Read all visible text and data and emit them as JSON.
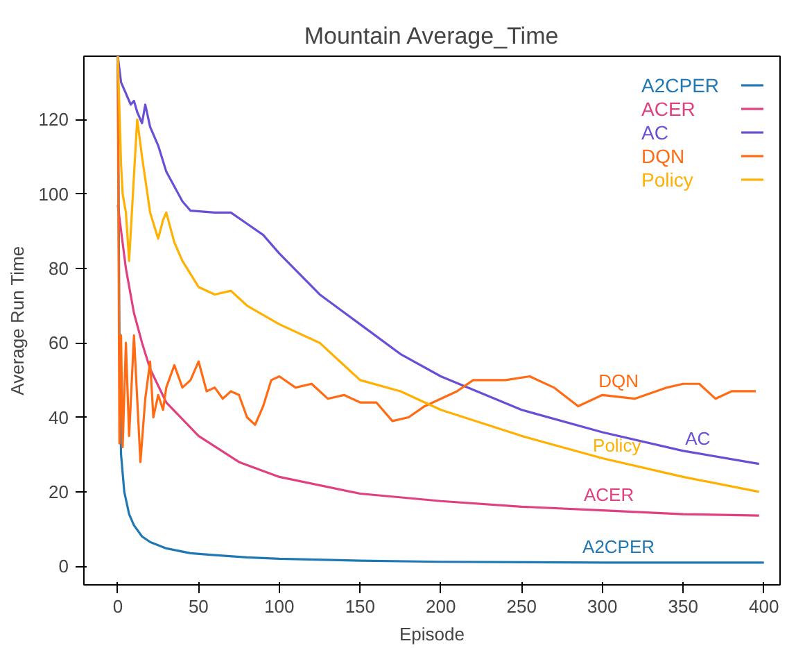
{
  "chart_data": {
    "type": "line",
    "title": "Mountain Average_Time",
    "xlabel": "Episode",
    "ylabel": "Average Run Time",
    "xlim": [
      -21,
      410
    ],
    "ylim": [
      -5,
      137
    ],
    "xticks": [
      0,
      50,
      100,
      150,
      200,
      250,
      300,
      350,
      400
    ],
    "yticks": [
      0,
      20,
      40,
      60,
      80,
      100,
      120
    ],
    "grid": false,
    "legend": "top right",
    "line_style": "solid",
    "series": [
      {
        "name": "A2CPER",
        "color": "#1f77b4",
        "x": [
          0,
          1,
          2,
          4,
          7,
          10,
          15,
          20,
          30,
          45,
          60,
          80,
          100,
          150,
          200,
          300,
          400
        ],
        "values": [
          137,
          60,
          30,
          20,
          14,
          11,
          8,
          6.5,
          4.8,
          3.5,
          3,
          2.4,
          2,
          1.5,
          1.2,
          1,
          1
        ]
      },
      {
        "name": "ACER",
        "color": "#e0407f",
        "x": [
          0,
          5,
          10,
          15,
          20,
          30,
          50,
          75,
          100,
          150,
          200,
          250,
          300,
          350,
          397
        ],
        "values": [
          97,
          80,
          68,
          60,
          53,
          44,
          35,
          28,
          24,
          19.5,
          17.5,
          16,
          15,
          14,
          13.6
        ]
      },
      {
        "name": "AC",
        "color": "#6a4fd6",
        "x": [
          0,
          2,
          5,
          8,
          10,
          12,
          15,
          17,
          20,
          25,
          30,
          40,
          45,
          60,
          70,
          80,
          90,
          100,
          125,
          150,
          175,
          200,
          250,
          300,
          350,
          397
        ],
        "values": [
          137,
          130,
          127,
          124,
          125,
          122,
          119,
          124,
          118,
          113,
          106,
          98,
          95.5,
          95,
          95,
          92,
          89,
          84,
          73,
          65,
          57,
          51,
          42,
          36,
          31,
          27.5
        ]
      },
      {
        "name": "DQN",
        "color": "#ff6a13",
        "x": [
          0,
          1,
          2,
          3,
          5,
          7,
          10,
          12,
          14,
          17,
          20,
          22,
          25,
          28,
          30,
          35,
          40,
          45,
          50,
          55,
          60,
          65,
          70,
          75,
          80,
          85,
          90,
          95,
          100,
          110,
          120,
          130,
          140,
          150,
          160,
          170,
          180,
          190,
          200,
          210,
          220,
          230,
          240,
          255,
          270,
          285,
          300,
          320,
          340,
          350,
          360,
          370,
          380,
          395
        ],
        "values": [
          135,
          33,
          62,
          32,
          60,
          35,
          62,
          45,
          28,
          45,
          55,
          40,
          46,
          42,
          48,
          54,
          48,
          50,
          55,
          47,
          48,
          45,
          47,
          46,
          40,
          38,
          43,
          50,
          51,
          48,
          49,
          45,
          46,
          44,
          44,
          39,
          40,
          43,
          45,
          47,
          50,
          50,
          50,
          51,
          48,
          43,
          46,
          45,
          48,
          49,
          49,
          45,
          47,
          47
        ]
      },
      {
        "name": "Policy",
        "color": "#ffb000",
        "x": [
          0,
          2,
          3,
          5,
          7,
          10,
          12,
          15,
          20,
          25,
          28,
          30,
          35,
          40,
          50,
          60,
          70,
          80,
          100,
          125,
          150,
          175,
          200,
          250,
          300,
          350,
          397
        ],
        "values": [
          137,
          108,
          100,
          95,
          82,
          105,
          120,
          110,
          95,
          88,
          93,
          95,
          87,
          82,
          75,
          73,
          74,
          70,
          65,
          60,
          50,
          47,
          42,
          35,
          29,
          24,
          20
        ]
      }
    ],
    "annotations": [
      {
        "text": "DQN",
        "x": 310,
        "y": 45.5
      },
      {
        "text": "AC",
        "x": 359,
        "y": 30
      },
      {
        "text": "Policy",
        "x": 309,
        "y": 28.1
      },
      {
        "text": "ACER",
        "x": 304,
        "y": 15
      },
      {
        "text": "A2CPER",
        "x": 310,
        "y": 1
      }
    ]
  }
}
